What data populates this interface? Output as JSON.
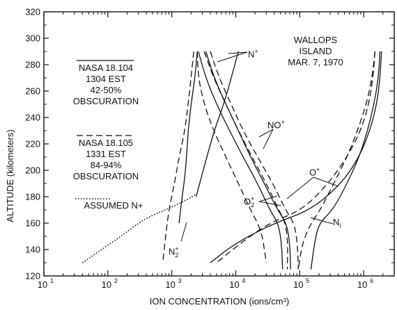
{
  "chart_data": {
    "type": "line",
    "xlabel": "ION CONCENTRATION (ions/cm³)",
    "ylabel": "ALTITUDE (kilometers)",
    "x_scale": "log",
    "xlim": [
      10,
      3000000
    ],
    "ylim": [
      120,
      320
    ],
    "x_ticks": [
      10,
      100,
      1000,
      10000,
      100000,
      1000000
    ],
    "x_tick_labels": [
      {
        "base": "10",
        "exp": "1"
      },
      {
        "base": "10",
        "exp": "2"
      },
      {
        "base": "10",
        "exp": "3"
      },
      {
        "base": "10",
        "exp": "4"
      },
      {
        "base": "10",
        "exp": "5"
      },
      {
        "base": "10",
        "exp": "6"
      }
    ],
    "y_ticks": [
      120,
      140,
      160,
      180,
      200,
      220,
      240,
      260,
      280,
      300,
      320
    ],
    "grid": false,
    "location_label": [
      "WALLOPS",
      "ISLAND",
      "MAR. 7, 1970"
    ],
    "legend": [
      {
        "style": "solid",
        "lines": [
          "NASA 18.104",
          "1304 EST",
          "42-50%",
          "OBSCURATION"
        ]
      },
      {
        "style": "dashed",
        "lines": [
          "NASA 18.105",
          "1331 EST",
          "84-94%",
          "OBSCURATION"
        ]
      },
      {
        "style": "dotted",
        "lines": [
          "ASSUMED N+"
        ]
      }
    ],
    "curve_labels": [
      {
        "ion": "N+",
        "base": "N",
        "sup": "+",
        "sub": ""
      },
      {
        "ion": "NO+",
        "base": "NO",
        "sup": "+",
        "sub": ""
      },
      {
        "ion": "O+",
        "base": "O",
        "sup": "+",
        "sub": ""
      },
      {
        "ion": "O2+",
        "base": "O",
        "sup": "+",
        "sub": "2"
      },
      {
        "ion": "N2+",
        "base": "N",
        "sup": "+",
        "sub": "2"
      },
      {
        "ion": "Ni",
        "base": "N",
        "sup": "",
        "sub": "i"
      }
    ],
    "series": [
      {
        "ion": "N2+",
        "flight": "NASA 18.104",
        "style": "solid",
        "x": [
          2500,
          2300,
          2000,
          1800,
          1700,
          1600,
          1450,
          1300
        ],
        "y": [
          290,
          270,
          250,
          230,
          210,
          195,
          180,
          160
        ]
      },
      {
        "ion": "N2+",
        "flight": "NASA 18.105",
        "style": "dashed",
        "x": [
          2200,
          2000,
          1800,
          1600,
          1300,
          1100,
          900,
          800,
          720
        ],
        "y": [
          290,
          270,
          250,
          230,
          210,
          190,
          170,
          150,
          130
        ]
      },
      {
        "ion": "N+",
        "flight": "NASA 18.104",
        "style": "solid",
        "x": [
          11000,
          8500,
          6500,
          4600,
          3300,
          2400
        ],
        "y": [
          290,
          270,
          250,
          230,
          205,
          180
        ]
      },
      {
        "ion": "N+",
        "flight": "NASA 18.105",
        "style": "dashed",
        "x": [
          2500,
          2600,
          3200,
          4500,
          7000,
          11000,
          17000,
          22000,
          26000,
          28000,
          30000
        ],
        "y": [
          290,
          270,
          250,
          230,
          210,
          190,
          170,
          160,
          150,
          140,
          130
        ]
      },
      {
        "ion": "N+",
        "flight": "assumed",
        "style": "dotted",
        "x": [
          40,
          80,
          160,
          300,
          500,
          800,
          1200,
          1800,
          2400
        ],
        "y": [
          130,
          140,
          150,
          160,
          166,
          170,
          174,
          178,
          182
        ]
      },
      {
        "ion": "O2+",
        "flight": "NASA 18.104",
        "style": "solid",
        "x": [
          2600,
          3400,
          5000,
          8000,
          13000,
          22000,
          34000,
          46000,
          52000,
          54000
        ],
        "y": [
          290,
          270,
          250,
          230,
          210,
          190,
          170,
          160,
          145,
          125
        ]
      },
      {
        "ion": "O2+",
        "flight": "NASA 18.105",
        "style": "dashed",
        "x": [
          3200,
          4500,
          7000,
          11000,
          18000,
          30000,
          47000,
          60000,
          65000,
          64000
        ],
        "y": [
          290,
          270,
          250,
          230,
          210,
          190,
          170,
          160,
          145,
          125
        ]
      },
      {
        "ion": "NO+",
        "flight": "NASA 18.104",
        "style": "solid",
        "x": [
          3400,
          4600,
          7000,
          11000,
          17000,
          28000,
          45000,
          62000,
          70000,
          72000
        ],
        "y": [
          290,
          270,
          250,
          230,
          210,
          190,
          170,
          160,
          145,
          125
        ]
      },
      {
        "ion": "NO+",
        "flight": "NASA 18.105",
        "style": "dashed",
        "x": [
          4000,
          5500,
          8500,
          13000,
          22000,
          38000,
          60000,
          82000,
          92000,
          95000
        ],
        "y": [
          290,
          270,
          250,
          230,
          210,
          190,
          170,
          160,
          145,
          125
        ]
      },
      {
        "ion": "O+",
        "flight": "NASA 18.104",
        "style": "solid",
        "x": [
          1800000,
          1700000,
          1450000,
          1150000,
          850000,
          550000,
          330000,
          200000,
          170000,
          150000
        ],
        "y": [
          290,
          270,
          250,
          230,
          210,
          190,
          170,
          160,
          145,
          125
        ]
      },
      {
        "ion": "O+",
        "flight": "NASA 18.105",
        "style": "dashed",
        "x": [
          1500000,
          1350000,
          1100000,
          800000,
          550000,
          340000,
          210000,
          150000,
          110000,
          95000
        ],
        "y": [
          290,
          270,
          250,
          230,
          210,
          190,
          170,
          160,
          145,
          125
        ]
      },
      {
        "ion": "Ni",
        "flight": "NASA 18.104",
        "style": "solid",
        "x": [
          1900000,
          1800000,
          1600000,
          1250000,
          850000,
          450000,
          150000,
          40000,
          10000,
          4000
        ],
        "y": [
          290,
          270,
          250,
          230,
          210,
          190,
          170,
          160,
          145,
          130
        ]
      },
      {
        "ion": "Ni",
        "flight": "NASA 18.105",
        "style": "dashed",
        "x": [
          1500000,
          1400000,
          1200000,
          900000,
          550000,
          280000,
          110000,
          33000,
          12000,
          5000
        ],
        "y": [
          290,
          270,
          250,
          230,
          210,
          190,
          170,
          160,
          145,
          130
        ]
      }
    ]
  }
}
